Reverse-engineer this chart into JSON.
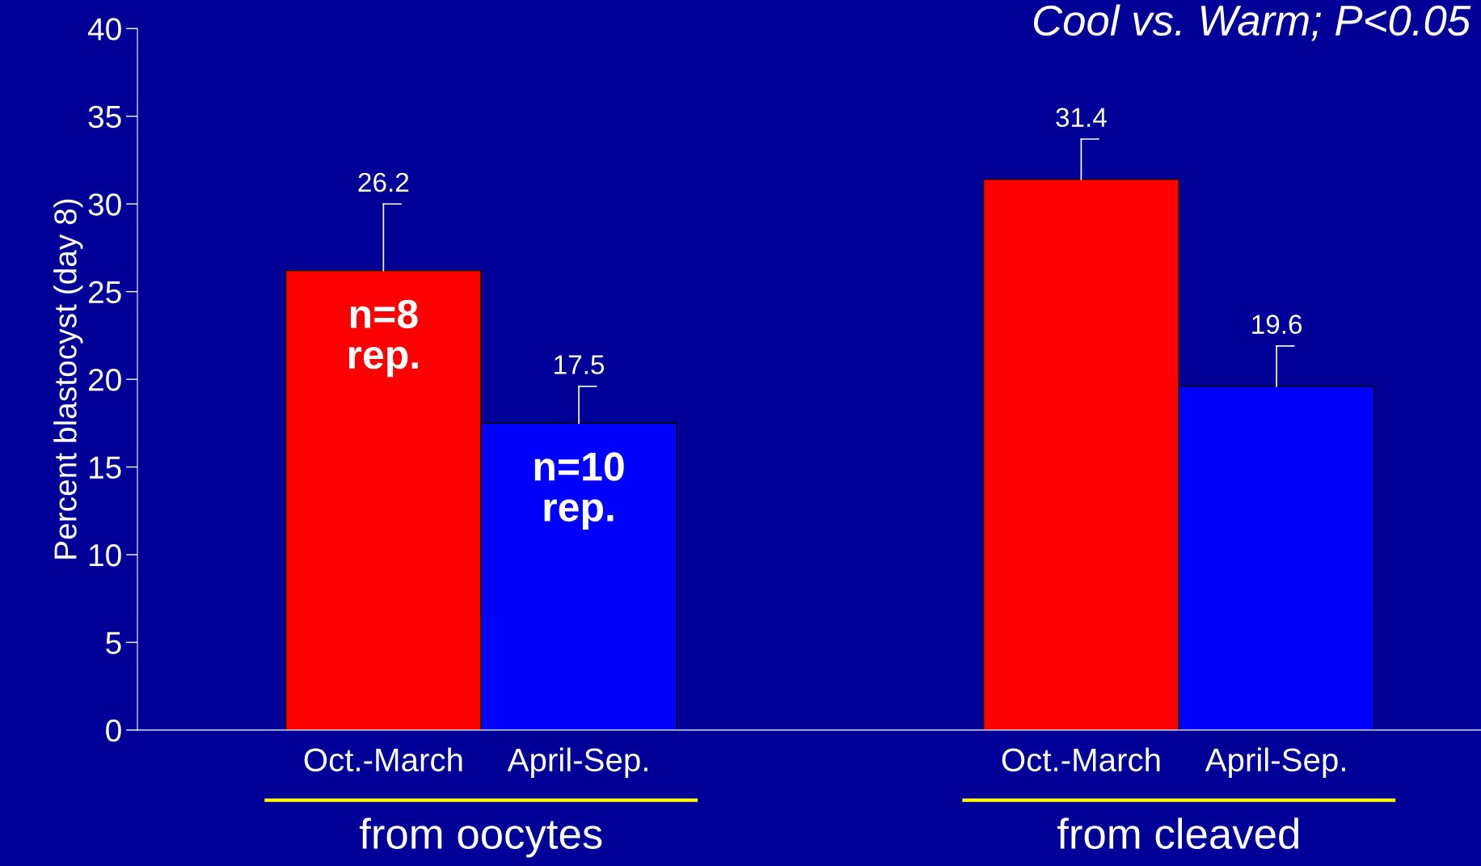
{
  "chart_data": {
    "type": "bar",
    "title": "Cool vs. Warm; P<0.05",
    "ylabel": "Percent blastocyst (day 8)",
    "categories": [
      "from oocytes",
      "from cleaved"
    ],
    "series": [
      {
        "name": "Oct.-March",
        "color": "#ff0000",
        "values": [
          26.2,
          31.4
        ],
        "errors": [
          [
            26.2,
            30.0
          ],
          [
            31.4,
            33.7
          ]
        ]
      },
      {
        "name": "April-Sep.",
        "color": "#0000ff",
        "values": [
          17.5,
          19.6
        ],
        "errors": [
          [
            17.5,
            19.6
          ],
          [
            19.6,
            21.9
          ]
        ]
      }
    ],
    "ylim": [
      0,
      40
    ],
    "yticks": [
      0,
      5,
      10,
      15,
      20,
      25,
      30,
      35,
      40
    ],
    "data_labels": true,
    "grid": false,
    "legend": false,
    "annotations": [
      {
        "text": "n=8\nrep.",
        "x": "from oocytes",
        "y": 26.2
      },
      {
        "text": "n=10\nrep.",
        "x": "from oocytes",
        "y": 17.5
      }
    ]
  }
}
